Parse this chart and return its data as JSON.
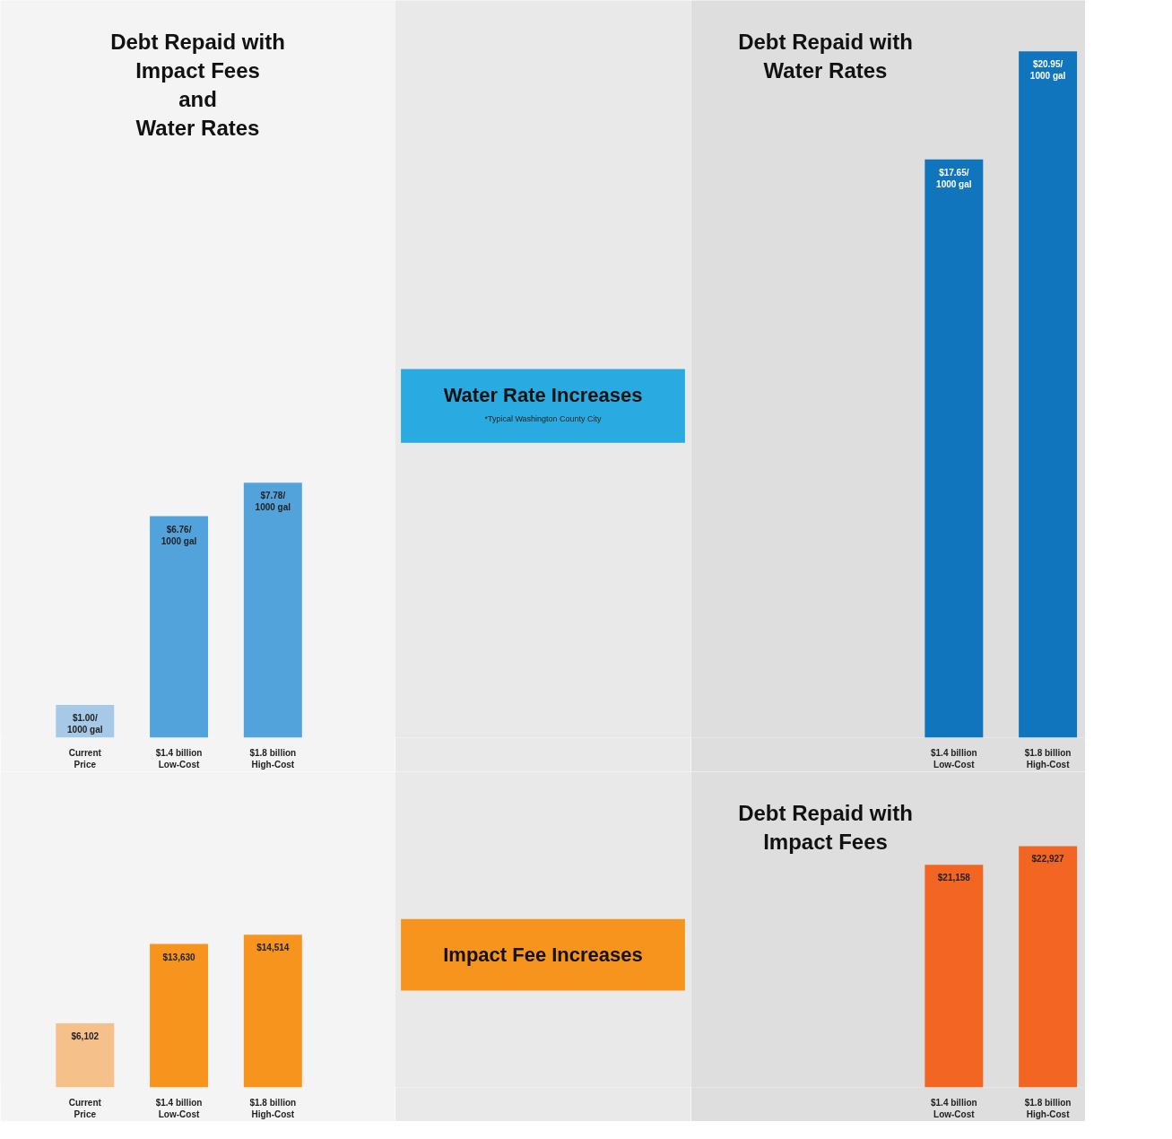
{
  "chart_data": [
    {
      "type": "bar",
      "title": "Debt Repaid with\nImpact Fees\nand\nWater Rates",
      "categories": [
        "Current\nPrice",
        "$1.4 billion\nLow-Cost",
        "$1.8 billion\nHigh-Cost"
      ],
      "values": [
        1.0,
        6.76,
        7.78
      ],
      "colors": [
        "#a7c9e8",
        "#52a3db",
        "#52a3db"
      ],
      "value_labels": [
        "$1.00/\n1000 gal",
        "$6.76/\n1000 gal",
        "$7.78/\n1000 gal"
      ],
      "ylim": [
        0,
        22.5
      ],
      "tick_labels": "x",
      "grid": false
    },
    {
      "type": "other",
      "title": "Water Rate Increases",
      "annotations": [
        "*Typical Washington County City"
      ]
    },
    {
      "type": "bar",
      "title": "Debt Repaid with\nWater Rates",
      "categories": [
        "$1.4 billion\nLow-Cost",
        "$1.8 billion\nHigh-Cost"
      ],
      "values": [
        17.65,
        20.95
      ],
      "colors": [
        "#1075bd",
        "#1075bd"
      ],
      "value_labels": [
        "$17.65/\n1000 gal",
        "$20.95/\n1000 gal"
      ],
      "ylim": [
        0,
        22.5
      ],
      "tick_labels": "x",
      "grid": false
    },
    {
      "type": "bar",
      "categories": [
        "Current\nPrice",
        "$1.4 billion\nLow-Cost",
        "$1.8 billion\nHigh-Cost"
      ],
      "values": [
        6102,
        13630,
        14514
      ],
      "colors": [
        "#f6c08a",
        "#f7941d",
        "#f7941d"
      ],
      "value_labels": [
        "$6,102",
        "$13,630",
        "$14,514"
      ],
      "ylim": [
        0,
        30000
      ],
      "tick_labels": "x",
      "grid": false
    },
    {
      "type": "other",
      "title": "Impact Fee Increases"
    },
    {
      "type": "bar",
      "title": "Debt Repaid with\nImpact Fees",
      "categories": [
        "$1.4 billion\nLow-Cost",
        "$1.8 billion\nHigh-Cost"
      ],
      "values": [
        21158,
        22927
      ],
      "colors": [
        "#f26522",
        "#f26522"
      ],
      "value_labels": [
        "$21,158",
        "$22,927"
      ],
      "ylim": [
        0,
        30000
      ],
      "tick_labels": "x",
      "grid": false
    }
  ]
}
